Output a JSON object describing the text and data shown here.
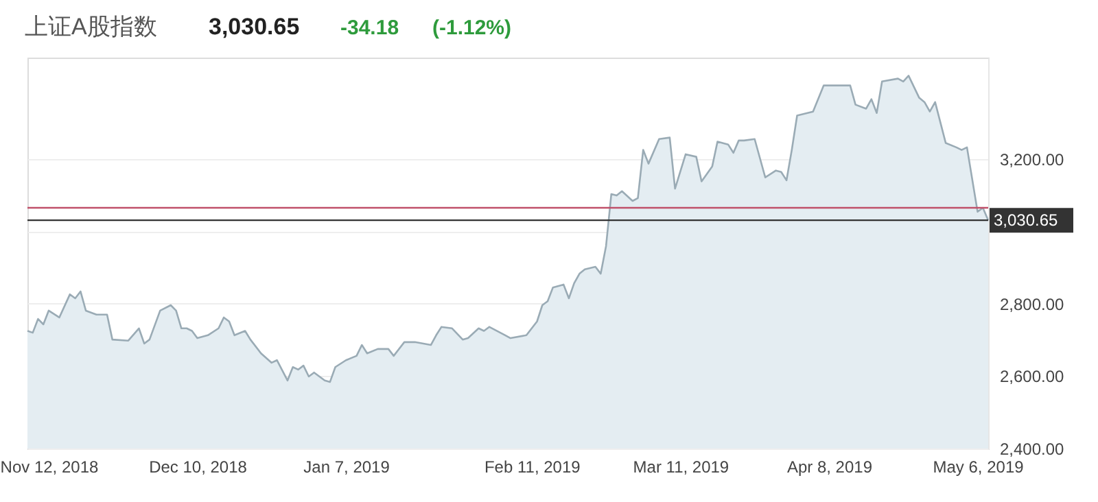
{
  "chart_data": {
    "type": "area",
    "title": "上证A股指数",
    "annotations": [
      "3,030.65",
      "-34.18",
      "(-1.12%)"
    ],
    "x": [
      "2018-11-08",
      "2018-11-09",
      "2018-11-10",
      "2018-11-11",
      "2018-11-12",
      "2018-11-14",
      "2018-11-16",
      "2018-11-17",
      "2018-11-18",
      "2018-11-19",
      "2018-11-21",
      "2018-11-23",
      "2018-11-24",
      "2018-11-27",
      "2018-11-29",
      "2018-11-30",
      "2018-12-01",
      "2018-12-03",
      "2018-12-05",
      "2018-12-06",
      "2018-12-07",
      "2018-12-08",
      "2018-12-09",
      "2018-12-10",
      "2018-12-12",
      "2018-12-14",
      "2018-12-15",
      "2018-12-16",
      "2018-12-17",
      "2018-12-19",
      "2018-12-20",
      "2018-12-22",
      "2018-12-24",
      "2018-12-25",
      "2018-12-27",
      "2018-12-28",
      "2018-12-29",
      "2018-12-30",
      "2018-12-31",
      "2019-01-01",
      "2019-01-03",
      "2019-01-04",
      "2019-01-05",
      "2019-01-07",
      "2019-01-09",
      "2019-01-10",
      "2019-01-11",
      "2019-01-13",
      "2019-01-15",
      "2019-01-16",
      "2019-01-18",
      "2019-01-20",
      "2019-01-23",
      "2019-01-24",
      "2019-01-25",
      "2019-01-27",
      "2019-01-29",
      "2019-01-30",
      "2019-02-01",
      "2019-02-02",
      "2019-02-03",
      "2019-02-06",
      "2019-02-07",
      "2019-02-10",
      "2019-02-12",
      "2019-02-13",
      "2019-02-14",
      "2019-02-15",
      "2019-02-17",
      "2019-02-18",
      "2019-02-19",
      "2019-02-20",
      "2019-02-21",
      "2019-02-23",
      "2019-02-24",
      "2019-02-25",
      "2019-02-26",
      "2019-02-27",
      "2019-02-28",
      "2019-03-02",
      "2019-03-03",
      "2019-03-04",
      "2019-03-05",
      "2019-03-07",
      "2019-03-09",
      "2019-03-10",
      "2019-03-12",
      "2019-03-14",
      "2019-03-15",
      "2019-03-17",
      "2019-03-18",
      "2019-03-20",
      "2019-03-21",
      "2019-03-22",
      "2019-03-23",
      "2019-03-25",
      "2019-03-27",
      "2019-03-29",
      "2019-03-30",
      "2019-03-31",
      "2019-04-01",
      "2019-04-02",
      "2019-04-05",
      "2019-04-07",
      "2019-04-10",
      "2019-04-12",
      "2019-04-13",
      "2019-04-15",
      "2019-04-16",
      "2019-04-17",
      "2019-04-18",
      "2019-04-21",
      "2019-04-22",
      "2019-04-23",
      "2019-04-25",
      "2019-04-26",
      "2019-04-27",
      "2019-04-28",
      "2019-04-30",
      "2019-05-02",
      "2019-05-03",
      "2019-05-04",
      "2019-05-06",
      "2019-05-07",
      "2019-05-08"
    ],
    "series": [
      {
        "color": "#9aabb5",
        "values": [
          2725,
          2720,
          2758,
          2743,
          2781,
          2762,
          2826,
          2815,
          2834,
          2781,
          2770,
          2770,
          2701,
          2698,
          2732,
          2690,
          2701,
          2781,
          2796,
          2781,
          2732,
          2732,
          2725,
          2705,
          2713,
          2732,
          2762,
          2751,
          2713,
          2725,
          2701,
          2663,
          2637,
          2644,
          2588,
          2625,
          2618,
          2629,
          2599,
          2610,
          2588,
          2584,
          2625,
          2644,
          2656,
          2686,
          2663,
          2675,
          2675,
          2656,
          2694,
          2694,
          2686,
          2713,
          2736,
          2732,
          2701,
          2705,
          2732,
          2725,
          2736,
          2713,
          2705,
          2713,
          2751,
          2796,
          2807,
          2845,
          2853,
          2815,
          2857,
          2883,
          2895,
          2902,
          2883,
          2959,
          3103,
          3099,
          3111,
          3084,
          3092,
          3225,
          3187,
          3255,
          3259,
          3118,
          3213,
          3206,
          3138,
          3179,
          3248,
          3240,
          3217,
          3251,
          3251,
          3255,
          3149,
          3168,
          3164,
          3141,
          3225,
          3320,
          3331,
          3403,
          3403,
          3403,
          3350,
          3339,
          3365,
          3327,
          3414,
          3422,
          3414,
          3430,
          3369,
          3357,
          3331,
          3357,
          3244,
          3232,
          3225,
          3232,
          3054,
          3065,
          3030.65
        ]
      }
    ],
    "xlim": [
      "2018-11-08",
      "2019-05-08"
    ],
    "xticks": [
      {
        "value": "2018-11-12",
        "label": "Nov 12, 2018"
      },
      {
        "value": "2018-12-10",
        "label": "Dec 10, 2018"
      },
      {
        "value": "2019-01-07",
        "label": "Jan 7, 2019"
      },
      {
        "value": "2019-02-11",
        "label": "Feb 11, 2019"
      },
      {
        "value": "2019-03-11",
        "label": "Mar 11, 2019"
      },
      {
        "value": "2019-04-08",
        "label": "Apr 8, 2019"
      },
      {
        "value": "2019-05-06",
        "label": "May 6, 2019"
      }
    ],
    "ylim": [
      2400,
      3480
    ],
    "yticks": [
      {
        "value": 2400,
        "label": "2,400.00"
      },
      {
        "value": 2600,
        "label": "2,600.00"
      },
      {
        "value": 2800,
        "label": "2,800.00"
      },
      {
        "value": 3000,
        "label": null
      },
      {
        "value": 3200,
        "label": "3,200.00"
      }
    ],
    "ref_lines": [
      {
        "axis": "y",
        "value": 3065,
        "label": null,
        "color": "#c0506a"
      },
      {
        "axis": "y",
        "value": 3030.65,
        "label": "3,030.65",
        "color": "#333333"
      }
    ],
    "grid": "y",
    "marker": "none",
    "line_style": "solid"
  }
}
